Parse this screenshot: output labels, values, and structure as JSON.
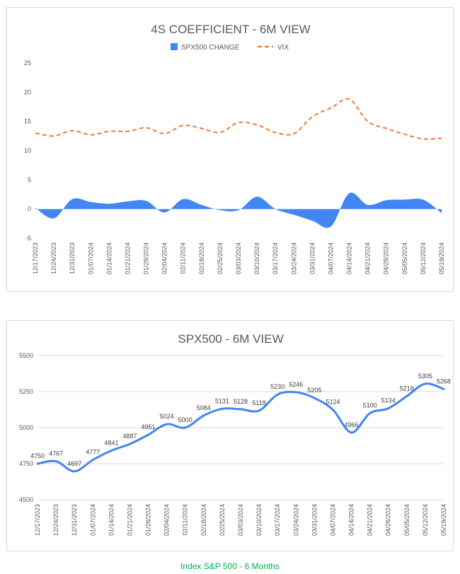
{
  "chart_data": [
    {
      "type": "area+line",
      "title": "4S COEFFICIENT - 6M VIEW",
      "categories": [
        "12/17/2023",
        "12/24/2023",
        "12/31/2023",
        "01/07/2024",
        "01/14/2024",
        "01/21/2024",
        "01/28/2024",
        "02/04/2024",
        "02/11/2024",
        "02/18/2024",
        "02/25/2024",
        "03/03/2024",
        "03/10/2024",
        "03/17/2024",
        "03/24/2024",
        "03/31/2024",
        "04/07/2024",
        "04/14/2024",
        "04/21/2024",
        "04/28/2024",
        "05/05/2024",
        "05/12/2024",
        "05/19/2024"
      ],
      "series": [
        {
          "name": "SPX500 CHANGE",
          "kind": "area",
          "color": "#4285f4",
          "values": [
            0.2,
            -1.6,
            1.7,
            1.2,
            0.9,
            1.3,
            1.4,
            -0.6,
            1.7,
            0.7,
            -0.2,
            -0.2,
            2.1,
            0.0,
            -1.0,
            -2.0,
            -3.0,
            2.7,
            0.7,
            1.5,
            1.6,
            1.6,
            -0.7
          ]
        },
        {
          "name": "VIX",
          "kind": "line",
          "dash": "dashed",
          "color": "#ed7d31",
          "values": [
            13.0,
            12.5,
            13.4,
            12.7,
            13.3,
            13.3,
            13.9,
            12.9,
            14.3,
            13.8,
            13.1,
            14.8,
            14.4,
            13.1,
            12.9,
            15.8,
            17.3,
            18.8,
            15.0,
            13.8,
            12.8,
            12.0,
            12.1
          ]
        }
      ],
      "yticks": [
        -5,
        0,
        5,
        10,
        15,
        20,
        25
      ],
      "ylim": [
        -5,
        25
      ],
      "legend": "top-center",
      "grid": false
    },
    {
      "type": "line",
      "title": "SPX500 - 6M VIEW",
      "categories": [
        "12/17/2023",
        "12/24/2023",
        "12/31/2023",
        "01/07/2024",
        "01/14/2024",
        "01/21/2024",
        "01/28/2024",
        "02/04/2024",
        "02/11/2024",
        "02/18/2024",
        "02/25/2024",
        "03/03/2024",
        "03/10/2024",
        "03/17/2024",
        "03/24/2024",
        "03/31/2024",
        "04/07/2024",
        "04/14/2024",
        "04/21/2024",
        "04/28/2024",
        "05/05/2024",
        "05/12/2024",
        "05/19/2024"
      ],
      "series": [
        {
          "name": "SPX500",
          "color": "#4285f4",
          "values": [
            4750,
            4767,
            4697,
            4777,
            4841,
            4887,
            4951,
            5024,
            5000,
            5084,
            5131,
            5128,
            5118,
            5230,
            5246,
            5205,
            5124,
            4966,
            5100,
            5134,
            5218,
            5305,
            5268
          ]
        }
      ],
      "yticks": [
        4500,
        4750,
        5000,
        5250,
        5500
      ],
      "ylim": [
        4500,
        5500
      ],
      "data_labels": true,
      "grid": true
    }
  ],
  "caption": "Index S&P 500 - 6 Months"
}
